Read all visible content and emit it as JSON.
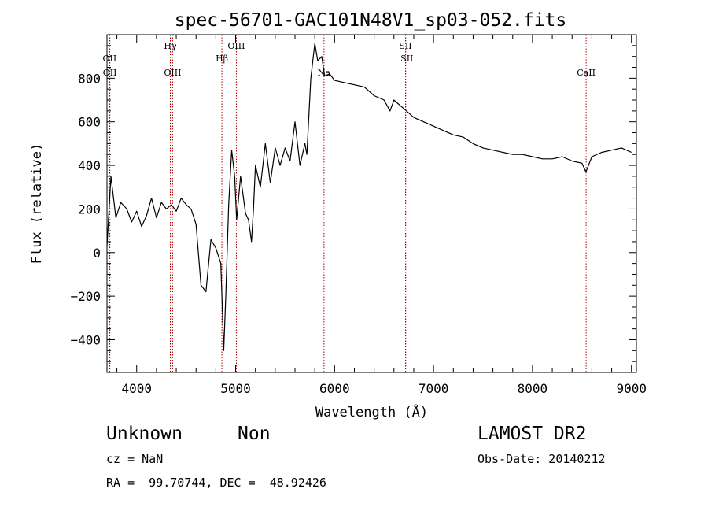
{
  "info": {
    "class_label": "Unknown",
    "subclass_label": "Non",
    "redshift_text": "cz = NaN",
    "coords_text": "RA =  99.70744, DEC =  48.92426",
    "survey_label": "LAMOST DR2",
    "obs_date_text": "Obs-Date: 20140212"
  },
  "chart_data": {
    "type": "line",
    "title": "spec-56701-GAC101N48V1_sp03-052.fits",
    "xlabel": "Wavelength (Å)",
    "ylabel": "Flux (relative)",
    "xlim": [
      3700,
      9050
    ],
    "ylim": [
      -550,
      1000
    ],
    "xticks": [
      4000,
      5000,
      6000,
      7000,
      8000,
      9000
    ],
    "yticks": [
      -400,
      -200,
      0,
      200,
      400,
      600,
      800
    ],
    "grid": false,
    "line_color": "#000000",
    "marker_color": "#aa0000",
    "spectral_lines": [
      {
        "label": "OII",
        "wavelength": 3727,
        "row": "upper"
      },
      {
        "label": "OII",
        "wavelength": 3729,
        "row": "lower"
      },
      {
        "label": "Hγ",
        "wavelength": 4340,
        "row": "top"
      },
      {
        "label": "OIII",
        "wavelength": 4363,
        "row": "lower"
      },
      {
        "label": "Hβ",
        "wavelength": 4861,
        "row": "upper"
      },
      {
        "label": "OIII",
        "wavelength": 5007,
        "row": "top"
      },
      {
        "label": "Na",
        "wavelength": 5893,
        "row": "lower"
      },
      {
        "label": "SII",
        "wavelength": 6717,
        "row": "top"
      },
      {
        "label": "SII",
        "wavelength": 6731,
        "row": "upper"
      },
      {
        "label": "CaII",
        "wavelength": 8542,
        "row": "lower"
      }
    ],
    "series": [
      {
        "x": [
          3700,
          3740,
          3790,
          3840,
          3900,
          3950,
          4000,
          4050,
          4100,
          4150,
          4200,
          4250,
          4300,
          4350,
          4400,
          4450,
          4500,
          4550,
          4600,
          4650,
          4700,
          4750,
          4800,
          4850,
          4880,
          4900,
          4930,
          4960,
          4990,
          5010,
          5050,
          5100,
          5130,
          5160,
          5180,
          5200,
          5250,
          5300,
          5350,
          5400,
          5450,
          5500,
          5550,
          5600,
          5650,
          5700,
          5720,
          5760,
          5800,
          5830,
          5870,
          5900,
          5950,
          6000,
          6100,
          6200,
          6300,
          6400,
          6500,
          6560,
          6600,
          6700,
          6800,
          6900,
          7000,
          7100,
          7200,
          7300,
          7400,
          7500,
          7600,
          7700,
          7800,
          7900,
          8000,
          8100,
          8200,
          8300,
          8400,
          8500,
          8540,
          8600,
          8700,
          8800,
          8900,
          9000
        ],
        "y": [
          30,
          350,
          160,
          230,
          200,
          140,
          190,
          120,
          170,
          250,
          160,
          230,
          200,
          220,
          190,
          250,
          220,
          200,
          130,
          -150,
          -180,
          60,
          20,
          -50,
          -450,
          -200,
          220,
          470,
          350,
          150,
          350,
          180,
          150,
          50,
          200,
          400,
          300,
          500,
          320,
          480,
          400,
          480,
          420,
          600,
          400,
          500,
          450,
          800,
          960,
          880,
          900,
          810,
          820,
          790,
          780,
          770,
          760,
          720,
          700,
          650,
          700,
          660,
          620,
          600,
          580,
          560,
          540,
          530,
          500,
          480,
          470,
          460,
          450,
          450,
          440,
          430,
          430,
          440,
          420,
          410,
          370,
          440,
          460,
          470,
          480,
          460
        ]
      }
    ]
  }
}
